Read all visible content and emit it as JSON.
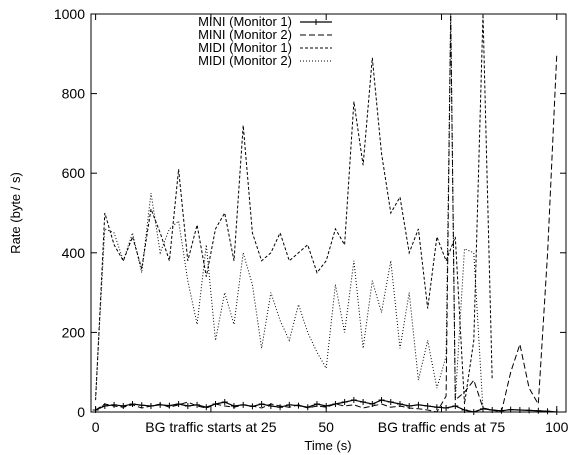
{
  "chart_data": {
    "type": "line",
    "xlabel": "Time (s)",
    "ylabel": "Rate (byte / s)",
    "xlim": [
      -1,
      102
    ],
    "ylim": [
      0,
      1000
    ],
    "x_ticks": [
      {
        "value": 0,
        "label": "0"
      },
      {
        "value": 50,
        "label": "50"
      },
      {
        "value": 100,
        "label": "100"
      }
    ],
    "x_annotations": [
      {
        "value": 25,
        "label": "BG traffic starts at 25"
      },
      {
        "value": 75,
        "label": "BG traffic ends at 75"
      }
    ],
    "y_ticks": [
      0,
      200,
      400,
      600,
      800,
      1000
    ],
    "legend_position": "top-left",
    "series": [
      {
        "name": "MINI (Monitor 1)",
        "style": "solid-plus",
        "color": "#000000",
        "x": [
          0,
          2,
          4,
          6,
          8,
          10,
          12,
          14,
          16,
          18,
          20,
          22,
          24,
          26,
          28,
          30,
          32,
          34,
          36,
          38,
          40,
          42,
          44,
          46,
          48,
          50,
          52,
          54,
          56,
          58,
          60,
          62,
          64,
          66,
          68,
          70,
          72,
          74,
          76,
          78,
          80,
          82,
          84,
          86,
          88,
          90,
          92,
          94,
          96,
          98,
          100
        ],
        "y": [
          5,
          15,
          18,
          15,
          20,
          17,
          15,
          18,
          16,
          20,
          15,
          18,
          12,
          20,
          25,
          15,
          18,
          14,
          20,
          15,
          12,
          18,
          16,
          12,
          20,
          15,
          20,
          25,
          30,
          25,
          20,
          30,
          25,
          20,
          15,
          18,
          15,
          12,
          10,
          15,
          5,
          0,
          8,
          5,
          3,
          6,
          5,
          4,
          3,
          2,
          0
        ]
      },
      {
        "name": "MINI (Monitor 2)",
        "style": "dashed",
        "color": "#000000",
        "x": [
          0,
          2,
          4,
          6,
          8,
          10,
          12,
          14,
          16,
          18,
          20,
          22,
          24,
          26,
          28,
          30,
          32,
          34,
          36,
          38,
          40,
          42,
          44,
          46,
          48,
          50,
          52,
          54,
          56,
          58,
          60,
          62,
          64,
          66,
          68,
          70,
          72,
          74,
          76,
          77,
          78,
          80,
          82,
          84,
          86,
          88,
          90,
          92,
          94,
          96,
          98,
          100
        ],
        "y": [
          5,
          20,
          15,
          12,
          18,
          10,
          15,
          20,
          12,
          18,
          25,
          15,
          10,
          20,
          15,
          12,
          18,
          15,
          10,
          20,
          15,
          12,
          18,
          10,
          15,
          12,
          20,
          15,
          18,
          10,
          15,
          20,
          12,
          15,
          10,
          8,
          5,
          0,
          40,
          1000,
          30,
          50,
          80,
          10,
          5,
          0,
          100,
          170,
          60,
          20,
          400,
          900
        ]
      },
      {
        "name": "MIDI (Monitor 1)",
        "style": "dashed-fine",
        "color": "#000000",
        "x": [
          0,
          2,
          4,
          6,
          8,
          10,
          12,
          14,
          16,
          18,
          20,
          22,
          24,
          26,
          28,
          30,
          32,
          34,
          36,
          38,
          40,
          42,
          44,
          46,
          48,
          50,
          52,
          54,
          56,
          58,
          60,
          62,
          64,
          66,
          68,
          70,
          72,
          74,
          76,
          78,
          80,
          82,
          84,
          86
        ],
        "y": [
          30,
          500,
          420,
          380,
          440,
          360,
          510,
          450,
          380,
          610,
          380,
          470,
          340,
          460,
          500,
          380,
          720,
          450,
          380,
          400,
          450,
          380,
          400,
          420,
          350,
          380,
          460,
          420,
          780,
          620,
          890,
          650,
          500,
          540,
          400,
          460,
          260,
          440,
          380,
          440,
          20,
          180,
          1000,
          80
        ]
      },
      {
        "name": "MIDI (Monitor 2)",
        "style": "dotted",
        "color": "#000000",
        "x": [
          0,
          2,
          4,
          6,
          8,
          10,
          12,
          14,
          16,
          18,
          20,
          22,
          24,
          26,
          28,
          30,
          32,
          34,
          36,
          38,
          40,
          42,
          44,
          46,
          48,
          50,
          52,
          54,
          56,
          58,
          60,
          62,
          64,
          66,
          68,
          70,
          72,
          74,
          76,
          77,
          78,
          80,
          82,
          84
        ],
        "y": [
          40,
          460,
          450,
          380,
          450,
          350,
          550,
          400,
          460,
          480,
          330,
          220,
          420,
          180,
          300,
          220,
          400,
          320,
          160,
          300,
          230,
          180,
          270,
          200,
          150,
          110,
          320,
          200,
          380,
          160,
          330,
          250,
          380,
          160,
          300,
          80,
          180,
          60,
          140,
          1000,
          30,
          410,
          400,
          5
        ]
      }
    ]
  }
}
